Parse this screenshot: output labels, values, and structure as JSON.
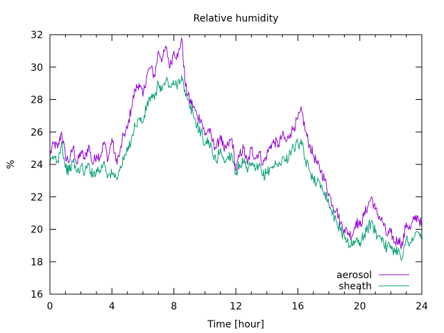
{
  "chart_data": {
    "type": "line",
    "title": "Relative humidity",
    "xlabel": "Time [hour]",
    "ylabel": "%",
    "xlim": [
      0,
      24
    ],
    "ylim": [
      16,
      32
    ],
    "xticks": [
      "0",
      "4",
      "8",
      "12",
      "16",
      "20",
      "24"
    ],
    "yticks": [
      "16",
      "18",
      "20",
      "22",
      "24",
      "26",
      "28",
      "30",
      "32"
    ],
    "grid": false,
    "legend_position": "bottom-right",
    "series": [
      {
        "name": "aerosol",
        "color": "#9400d3",
        "x": [
          0,
          0.25,
          0.5,
          0.75,
          1,
          1.25,
          1.5,
          1.75,
          2,
          2.25,
          2.5,
          2.75,
          3,
          3.25,
          3.5,
          3.75,
          4,
          4.25,
          4.5,
          4.75,
          5,
          5.25,
          5.5,
          5.75,
          6,
          6.25,
          6.5,
          6.75,
          7,
          7.25,
          7.5,
          7.75,
          8,
          8.25,
          8.5,
          8.75,
          9,
          9.25,
          9.5,
          9.75,
          10,
          10.25,
          10.5,
          10.75,
          11,
          11.25,
          11.5,
          11.75,
          12,
          12.25,
          12.5,
          12.75,
          13,
          13.25,
          13.5,
          13.75,
          14,
          14.25,
          14.5,
          14.75,
          15,
          15.25,
          15.5,
          15.75,
          16,
          16.25,
          16.5,
          16.75,
          17,
          17.25,
          17.5,
          17.75,
          18,
          18.25,
          18.5,
          18.75,
          19,
          19.25,
          19.5,
          19.75,
          20,
          20.25,
          20.5,
          20.75,
          21,
          21.25,
          21.5,
          21.75,
          22,
          22.25,
          22.5,
          22.75,
          23,
          23.25,
          23.5,
          23.75,
          24
        ],
        "y": [
          24.6,
          25.3,
          25.0,
          26.0,
          24.5,
          24.2,
          25.1,
          24.0,
          24.8,
          24.3,
          25.2,
          24.0,
          24.6,
          24.5,
          25.4,
          24.3,
          25.6,
          24.2,
          24.6,
          25.8,
          26.2,
          27.5,
          28.6,
          29.0,
          28.2,
          29.5,
          30.0,
          29.4,
          31.0,
          30.5,
          31.2,
          30.0,
          31.0,
          30.6,
          31.8,
          28.8,
          28.0,
          27.6,
          27.0,
          26.8,
          25.8,
          26.2,
          25.4,
          25.0,
          25.8,
          24.8,
          25.2,
          25.6,
          23.6,
          24.6,
          25.0,
          24.0,
          25.0,
          24.4,
          24.8,
          24.0,
          24.6,
          25.2,
          25.4,
          25.2,
          25.8,
          25.4,
          25.9,
          26.3,
          26.8,
          27.3,
          26.0,
          25.2,
          24.6,
          24.0,
          23.6,
          23.0,
          22.2,
          21.5,
          21.2,
          20.4,
          20.0,
          19.8,
          19.6,
          20.5,
          20.2,
          20.8,
          21.4,
          22.0,
          21.2,
          20.8,
          20.4,
          19.6,
          19.8,
          19.2,
          19.4,
          19.0,
          20.4,
          20.0,
          20.6,
          20.8,
          20.2
        ]
      },
      {
        "name": "sheath",
        "color": "#009e73",
        "x": [
          0,
          0.25,
          0.5,
          0.75,
          1,
          1.25,
          1.5,
          1.75,
          2,
          2.25,
          2.5,
          2.75,
          3,
          3.25,
          3.5,
          3.75,
          4,
          4.25,
          4.5,
          4.75,
          5,
          5.25,
          5.5,
          5.75,
          6,
          6.25,
          6.5,
          6.75,
          7,
          7.25,
          7.5,
          7.75,
          8,
          8.25,
          8.5,
          8.75,
          9,
          9.25,
          9.5,
          9.75,
          10,
          10.25,
          10.5,
          10.75,
          11,
          11.25,
          11.5,
          11.75,
          12,
          12.25,
          12.5,
          12.75,
          13,
          13.25,
          13.5,
          13.75,
          14,
          14.25,
          14.5,
          14.75,
          15,
          15.25,
          15.5,
          15.75,
          16,
          16.25,
          16.5,
          16.75,
          17,
          17.25,
          17.5,
          17.75,
          18,
          18.25,
          18.5,
          18.75,
          19,
          19.25,
          19.5,
          19.75,
          20,
          20.25,
          20.5,
          20.75,
          21,
          21.25,
          21.5,
          21.75,
          22,
          22.25,
          22.5,
          22.75,
          23,
          23.25,
          23.5,
          23.75,
          24
        ],
        "y": [
          24.0,
          24.5,
          24.2,
          25.4,
          23.8,
          23.6,
          24.2,
          23.5,
          23.9,
          23.5,
          24.0,
          23.3,
          23.7,
          23.6,
          24.2,
          23.3,
          23.4,
          23.2,
          23.6,
          24.3,
          24.8,
          25.6,
          26.4,
          26.8,
          26.6,
          27.6,
          28.2,
          28.0,
          29.0,
          28.6,
          29.2,
          28.8,
          28.9,
          29.0,
          29.5,
          28.2,
          27.6,
          27.1,
          26.4,
          26.0,
          25.2,
          25.5,
          24.6,
          24.2,
          25.0,
          24.1,
          24.5,
          24.6,
          23.4,
          24.0,
          24.2,
          23.5,
          24.1,
          23.6,
          23.9,
          23.3,
          23.5,
          23.8,
          24.0,
          23.9,
          24.4,
          24.2,
          24.8,
          25.0,
          25.3,
          25.2,
          24.2,
          23.6,
          23.2,
          22.9,
          22.7,
          22.3,
          21.6,
          21.0,
          20.5,
          19.9,
          19.6,
          19.2,
          19.0,
          19.3,
          19.2,
          19.6,
          20.0,
          20.5,
          19.8,
          19.6,
          19.4,
          18.8,
          19.0,
          18.6,
          18.8,
          18.2,
          19.4,
          19.2,
          19.5,
          19.8,
          19.5
        ]
      }
    ]
  }
}
